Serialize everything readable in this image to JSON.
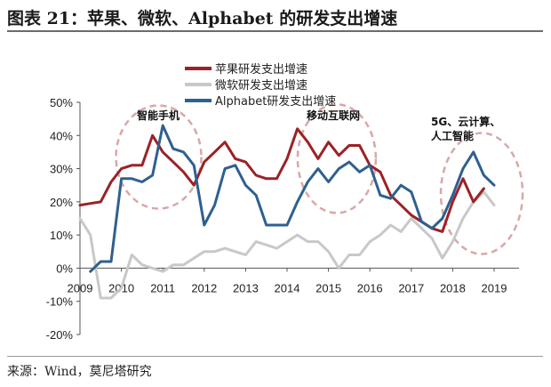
{
  "figure": {
    "title": "图表 21：苹果、微软、Alphabet 的研发支出增速",
    "source": "来源：Wind，莫尼塔研究"
  },
  "chart_data": {
    "type": "line",
    "title": "",
    "xlabel": "",
    "ylabel": "",
    "x_ticks": [
      "2009",
      "2010",
      "2011",
      "2012",
      "2013",
      "2014",
      "2015",
      "2016",
      "2017",
      "2018",
      "2019"
    ],
    "y_ticks": [
      "50%",
      "40%",
      "30%",
      "20%",
      "10%",
      "0%",
      "-10%",
      "-20%"
    ],
    "ylim": [
      -20,
      50
    ],
    "grid": false,
    "legend_position": "top-center",
    "series": [
      {
        "name": "苹果研发支出增速",
        "color": "#9b2226",
        "x": [
          2009.0,
          2009.25,
          2009.5,
          2009.75,
          2010.0,
          2010.25,
          2010.5,
          2010.75,
          2011.0,
          2011.25,
          2011.5,
          2011.75,
          2012.0,
          2012.25,
          2012.5,
          2012.75,
          2013.0,
          2013.25,
          2013.5,
          2013.75,
          2014.0,
          2014.25,
          2014.5,
          2014.75,
          2015.0,
          2015.25,
          2015.5,
          2015.75,
          2016.0,
          2016.25,
          2016.5,
          2016.75,
          2017.0,
          2017.25,
          2017.5,
          2017.75,
          2018.0,
          2018.25,
          2018.5,
          2018.75,
          2019.0
        ],
        "y": [
          19,
          19.5,
          20,
          26,
          30,
          31,
          31,
          40,
          35,
          32,
          29,
          25,
          32,
          35,
          38,
          33,
          32,
          28,
          27,
          27,
          33,
          42,
          38,
          33,
          38,
          34,
          37,
          37,
          31,
          29,
          22,
          19,
          16,
          14,
          12,
          11,
          20,
          27,
          20,
          24,
          null
        ]
      },
      {
        "name": "微软研发支出增速",
        "color": "#c8c8c8",
        "x": [
          2009.0,
          2009.25,
          2009.5,
          2009.75,
          2010.0,
          2010.25,
          2010.5,
          2010.75,
          2011.0,
          2011.25,
          2011.5,
          2011.75,
          2012.0,
          2012.25,
          2012.5,
          2012.75,
          2013.0,
          2013.25,
          2013.5,
          2013.75,
          2014.0,
          2014.25,
          2014.5,
          2014.75,
          2015.0,
          2015.25,
          2015.5,
          2015.75,
          2016.0,
          2016.25,
          2016.5,
          2016.75,
          2017.0,
          2017.25,
          2017.5,
          2017.75,
          2018.0,
          2018.25,
          2018.5,
          2018.75,
          2019.0
        ],
        "y": [
          15,
          10,
          -9,
          -9,
          -6,
          4,
          1,
          0,
          -1,
          1,
          1,
          3,
          5,
          5,
          6,
          5,
          4,
          8,
          7,
          6,
          8,
          10,
          8,
          8,
          5,
          0,
          4,
          4,
          8,
          10,
          13,
          11,
          15,
          12,
          9,
          3,
          8,
          15,
          20,
          23,
          19
        ]
      },
      {
        "name": "Alphabet研发支出增速",
        "color": "#2e6090",
        "x": [
          2009.25,
          2009.5,
          2009.75,
          2010.0,
          2010.25,
          2010.5,
          2010.75,
          2011.0,
          2011.25,
          2011.5,
          2011.75,
          2012.0,
          2012.25,
          2012.5,
          2012.75,
          2013.0,
          2013.25,
          2013.5,
          2013.75,
          2014.0,
          2014.25,
          2014.5,
          2014.75,
          2015.0,
          2015.25,
          2015.5,
          2015.75,
          2016.0,
          2016.25,
          2016.5,
          2016.75,
          2017.0,
          2017.25,
          2017.5,
          2017.75,
          2018.0,
          2018.25,
          2018.5,
          2018.75,
          2019.0
        ],
        "y": [
          -1,
          2,
          2,
          27,
          27,
          26,
          28,
          43,
          36,
          35,
          31,
          13,
          19,
          30,
          31,
          25,
          22,
          13,
          13,
          13,
          20,
          26,
          30,
          26,
          30,
          32,
          29,
          31,
          22,
          21,
          25,
          23,
          14,
          12,
          15,
          22,
          30,
          35,
          28,
          25
        ]
      }
    ],
    "annotations": [
      {
        "text": "智能手机"
      },
      {
        "text": "移动互联网"
      },
      {
        "text": "5G、云计算、"
      },
      {
        "text": "人工智能"
      }
    ]
  }
}
